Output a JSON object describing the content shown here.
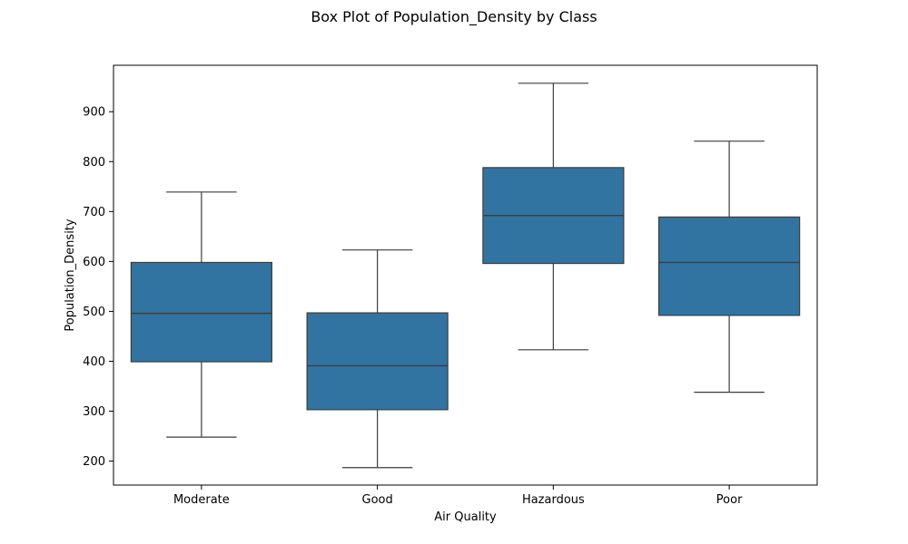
{
  "chart_data": {
    "type": "box",
    "title": "Box Plot of Population_Density by Class",
    "xlabel": "Air Quality",
    "ylabel": "Population_Density",
    "categories": [
      "Moderate",
      "Good",
      "Hazardous",
      "Poor"
    ],
    "boxes": [
      {
        "category": "Moderate",
        "whisker_low": 248,
        "q1": 399,
        "median": 496,
        "q3": 598,
        "whisker_high": 739
      },
      {
        "category": "Good",
        "whisker_low": 187,
        "q1": 303,
        "median": 391,
        "q3": 497,
        "whisker_high": 623
      },
      {
        "category": "Hazardous",
        "whisker_low": 423,
        "q1": 596,
        "median": 692,
        "q3": 788,
        "whisker_high": 957
      },
      {
        "category": "Poor",
        "whisker_low": 338,
        "q1": 492,
        "median": 598,
        "q3": 689,
        "whisker_high": 841
      }
    ],
    "ylim": [
      152,
      993
    ],
    "yticks": [
      200,
      300,
      400,
      500,
      600,
      700,
      800,
      900
    ],
    "grid": false,
    "colors": {
      "box_fill": "#3274a1",
      "line": "#3d3d3d"
    }
  }
}
